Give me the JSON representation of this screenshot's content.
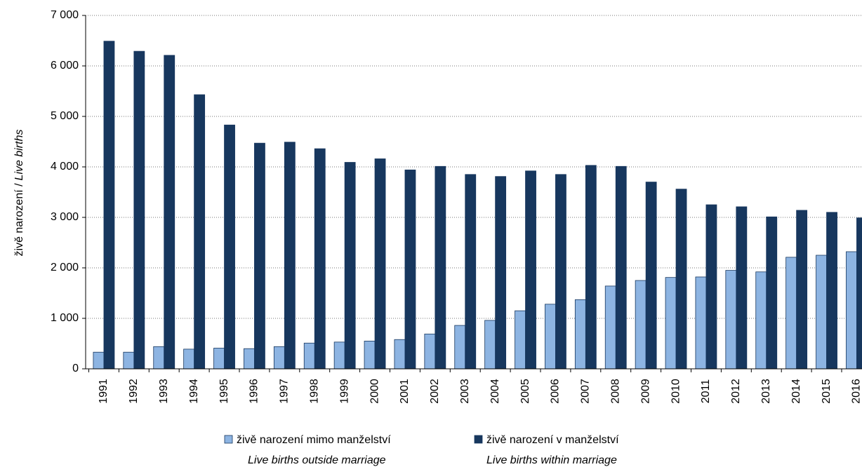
{
  "chart_data": {
    "type": "bar",
    "y_label": "živě narození  /",
    "y_label_en": "Live births",
    "categories": [
      "1991",
      "1992",
      "1993",
      "1994",
      "1995",
      "1996",
      "1997",
      "1998",
      "1999",
      "2000",
      "2001",
      "2002",
      "2003",
      "2004",
      "2005",
      "2006",
      "2007",
      "2008",
      "2009",
      "2010",
      "2011",
      "2012",
      "2013",
      "2014",
      "2015",
      "2016"
    ],
    "series": [
      {
        "name": "živě narození  mimo manželství",
        "name_en": "Live births outside marriage",
        "color": "#8db4e2",
        "values": [
          330,
          330,
          440,
          390,
          410,
          400,
          440,
          510,
          530,
          550,
          580,
          690,
          860,
          960,
          1150,
          1280,
          1370,
          1640,
          1750,
          1810,
          1820,
          1950,
          1920,
          2210,
          2250,
          2320
        ]
      },
      {
        "name": "živě narození  v manželství",
        "name_en": "Live births within marriage",
        "color": "#17375e",
        "values": [
          6490,
          6290,
          6210,
          5430,
          4830,
          4470,
          4490,
          4360,
          4090,
          4160,
          3940,
          4010,
          3850,
          3810,
          3920,
          3850,
          4030,
          4010,
          3700,
          3560,
          3250,
          3210,
          3010,
          3140,
          3100,
          2990
        ]
      }
    ],
    "ylim": [
      0,
      7000
    ],
    "yticks": [
      {
        "value": 0,
        "label": "0"
      },
      {
        "value": 1000,
        "label": "1 000"
      },
      {
        "value": 2000,
        "label": "2 000"
      },
      {
        "value": 3000,
        "label": "3 000"
      },
      {
        "value": 4000,
        "label": "4 000"
      },
      {
        "value": 5000,
        "label": "5 000"
      },
      {
        "value": 6000,
        "label": "6 000"
      },
      {
        "value": 7000,
        "label": "7 000"
      }
    ],
    "grid": true
  }
}
